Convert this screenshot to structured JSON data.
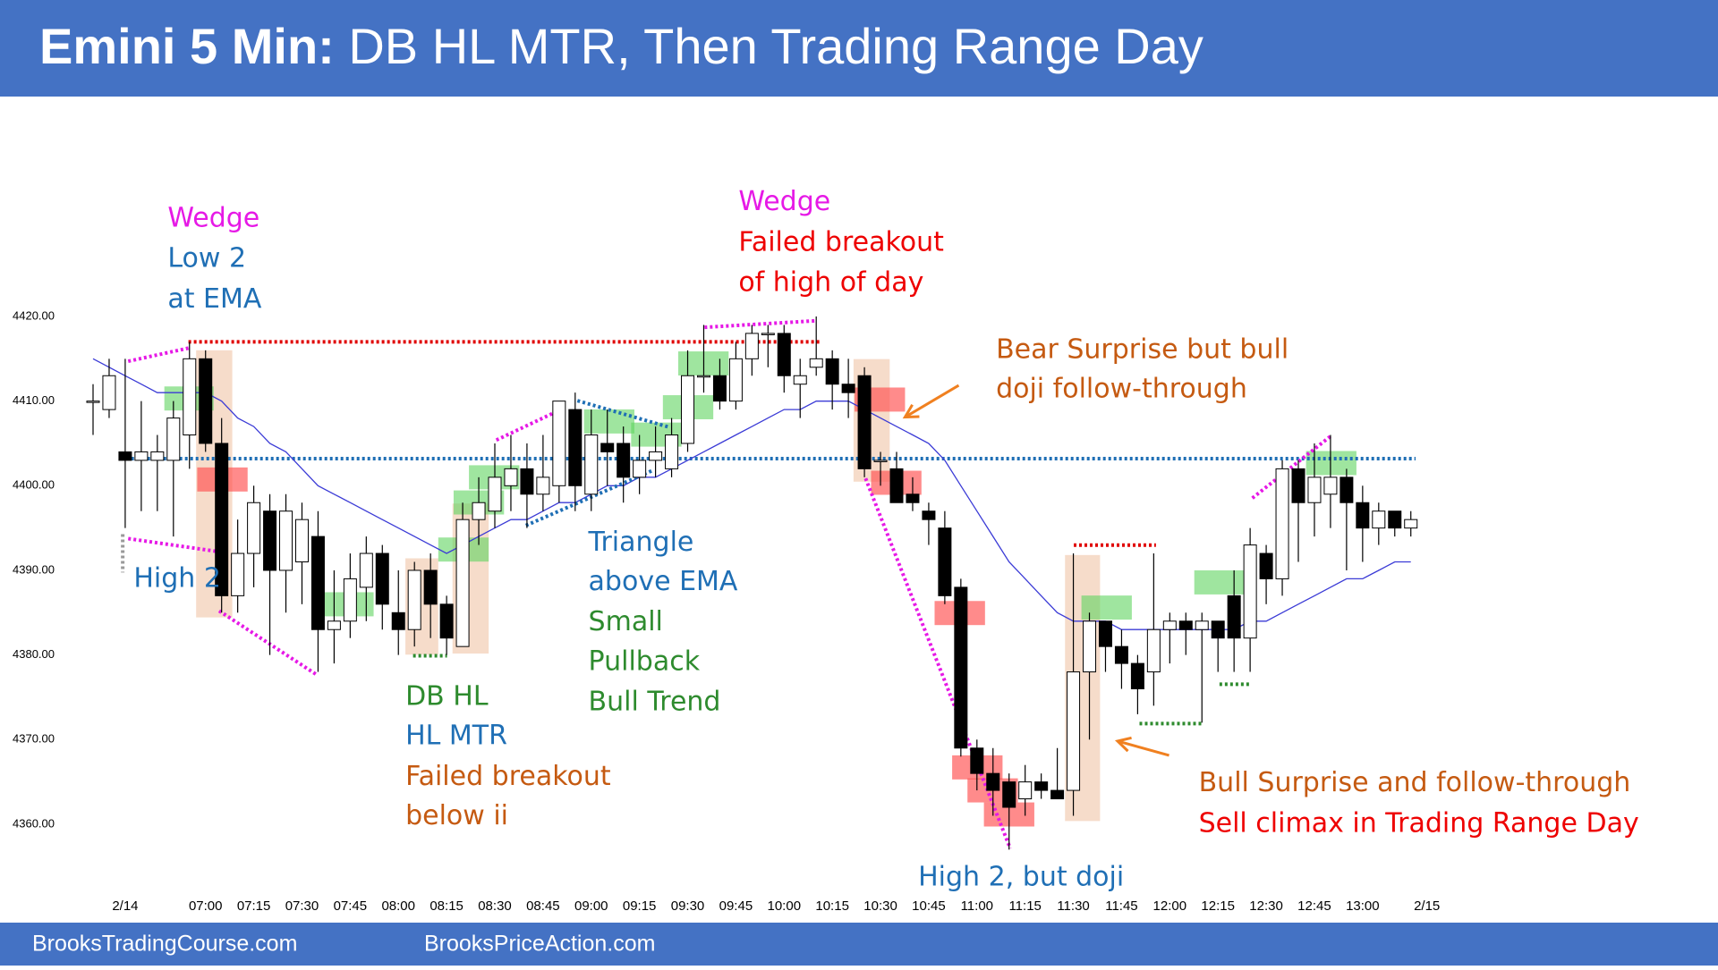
{
  "chart_data": {
    "type": "candlestick",
    "title": "Emini 5 Min:",
    "subtitle": "DB HL MTR, Then Trading Range Day",
    "categories": [
      null,
      null,
      "2/14",
      null,
      null,
      null,
      null,
      "07:00",
      null,
      null,
      "07:15",
      null,
      null,
      "07:30",
      null,
      null,
      "07:45",
      null,
      null,
      "08:00",
      null,
      null,
      "08:15",
      null,
      null,
      "08:30",
      null,
      null,
      "08:45",
      null,
      null,
      "09:00",
      null,
      null,
      "09:15",
      null,
      null,
      "09:30",
      null,
      null,
      "09:45",
      null,
      null,
      "10:00",
      null,
      null,
      "10:15",
      null,
      null,
      "10:30",
      null,
      null,
      "10:45",
      null,
      null,
      "11:00",
      null,
      null,
      "11:15",
      null,
      null,
      "11:30",
      null,
      null,
      "11:45",
      null,
      null,
      "12:00",
      null,
      null,
      "12:15",
      null,
      null,
      "12:30",
      null,
      null,
      "12:45",
      null,
      null,
      "13:00",
      null,
      null,
      null,
      "2/15"
    ],
    "open": [
      4410,
      4409,
      4404,
      4403,
      4403,
      4403,
      4406,
      4415,
      4405,
      4387,
      4392,
      4397,
      4390,
      4391,
      4394,
      4383,
      4384,
      4388,
      4392,
      4385,
      4383,
      4390,
      4386,
      4381,
      4396,
      4397,
      4400,
      4402,
      4399,
      4400,
      4409,
      4399,
      4405,
      4405,
      4401,
      4403,
      4402,
      4405,
      4413,
      4413,
      4410,
      4415,
      4418,
      4418,
      4412,
      4414,
      4415,
      4412,
      4413,
      4403,
      4402,
      4399,
      4397,
      4395,
      4388,
      4369,
      4366,
      4365,
      4363,
      4365,
      4364,
      4364,
      4378,
      4384,
      4381,
      4379,
      4378,
      4383,
      4384,
      4383,
      4384,
      4387,
      4382,
      4392,
      4389,
      4402,
      4398,
      4399,
      4401,
      4398,
      4395,
      4397,
      4395,
      null
    ],
    "high": [
      4412,
      4415,
      4415,
      4410,
      4406,
      4410,
      4417,
      4416,
      4408,
      4396,
      4400,
      4399,
      4399,
      4398,
      4397,
      4390,
      4392,
      4394,
      4393,
      4390,
      4391,
      4392,
      4387,
      4398,
      4401,
      4405,
      4406,
      4405,
      4406,
      4410,
      4411,
      4409,
      4409,
      4407,
      4406,
      4407,
      4408,
      4416,
      4419,
      4415,
      4417,
      4419,
      4419,
      4419,
      4415,
      4420,
      4416,
      4415,
      4414,
      4404,
      4404,
      4401,
      4398,
      4397,
      4389,
      4370,
      4369,
      4366,
      4367,
      4366,
      4369,
      4392,
      4385,
      4384,
      4383,
      4380,
      4392,
      4385,
      4385,
      4385,
      4384,
      4390,
      4395,
      4393,
      4403,
      4403,
      4405,
      4406,
      4402,
      4400,
      4398,
      4397,
      4397,
      null
    ],
    "low": [
      4406,
      4408,
      4395,
      4397,
      4397,
      4394,
      4402,
      4404,
      4385,
      4385,
      4388,
      4380,
      4385,
      4386,
      4378,
      4379,
      4382,
      4384,
      4383,
      4380,
      4381,
      4382,
      4380,
      4381,
      4393,
      4395,
      4397,
      4395,
      4397,
      4398,
      4397,
      4397,
      4400,
      4398,
      4399,
      4401,
      4401,
      4404,
      4411,
      4409,
      4409,
      4413,
      4414,
      4411,
      4408,
      4413,
      4409,
      4408,
      4401,
      4400,
      4398,
      4397,
      4393,
      4386,
      4368,
      4364,
      4361,
      4357,
      4361,
      4363,
      4363,
      4361,
      4370,
      4378,
      4376,
      4373,
      4374,
      4379,
      4380,
      4372,
      4378,
      4378,
      4378,
      4386,
      4387,
      4391,
      4394,
      4395,
      4390,
      4391,
      4393,
      4394,
      4394,
      null
    ],
    "close": [
      4410,
      4413,
      4403,
      4404,
      4404,
      4408,
      4415,
      4405,
      4387,
      4392,
      4398,
      4390,
      4397,
      4396,
      4383,
      4384,
      4389,
      4392,
      4386,
      4383,
      4390,
      4386,
      4382,
      4396,
      4398,
      4401,
      4402,
      4399,
      4401,
      4410,
      4400,
      4406,
      4404,
      4401,
      4403,
      4404,
      4406,
      4413,
      4413,
      4410,
      4415,
      4418,
      4418,
      4413,
      4413,
      4415,
      4412,
      4411,
      4402,
      4403,
      4398,
      4398,
      4396,
      4387,
      4369,
      4366,
      4364,
      4362,
      4365,
      4364,
      4363,
      4378,
      4384,
      4381,
      4379,
      4376,
      4383,
      4384,
      4383,
      4384,
      4382,
      4382,
      4393,
      4389,
      4402,
      4398,
      4401,
      4401,
      4398,
      4395,
      4397,
      4395,
      4396,
      null
    ],
    "up_color": "#ffffff",
    "down_color": "#000000",
    "ema": {
      "color": "#3b3bd6",
      "values": [
        4415,
        4414,
        4413,
        4412,
        4411,
        4411,
        4411,
        4411,
        4410,
        4408,
        4407,
        4405,
        4404,
        4402,
        4400,
        4399,
        4398,
        4397,
        4396,
        4395,
        4394,
        4393,
        4392,
        4393,
        4394,
        4395,
        4396,
        4396,
        4397,
        4398,
        4398,
        4399,
        4400,
        4400,
        4401,
        4401,
        4402,
        4403,
        4404,
        4405,
        4406,
        4407,
        4408,
        4409,
        4409,
        4410,
        4410,
        4410,
        4409,
        4408,
        4407,
        4406,
        4405,
        4403,
        4400,
        4397,
        4394,
        4391,
        4389,
        4387,
        4385,
        4384,
        4384,
        4384,
        4383,
        4383,
        4383,
        4383,
        4383,
        4383,
        4383,
        4383,
        4384,
        4384,
        4385,
        4386,
        4387,
        4388,
        4389,
        4389,
        4390,
        4391,
        4391,
        null
      ]
    },
    "reference_lines": [
      {
        "value": 4403.2,
        "color": "#1f6fb5"
      },
      {
        "value": 4417,
        "color": "#e00000"
      }
    ],
    "ylim": [
      4350,
      4445
    ],
    "yticks": [
      {
        "value": 4360,
        "label": "4360.00"
      },
      {
        "value": 4370,
        "label": "4370.00"
      },
      {
        "value": 4380,
        "label": "4380.00"
      },
      {
        "value": 4390,
        "label": "4390.00"
      },
      {
        "value": 4400,
        "label": "4400.00"
      },
      {
        "value": 4410,
        "label": "4410.00"
      },
      {
        "value": 4420,
        "label": "4420.00"
      }
    ],
    "annotations": [
      {
        "text": "Wedge",
        "color": "#e619e6"
      },
      {
        "text": "Low 2",
        "color": "#1f6fb5"
      },
      {
        "text": "at EMA",
        "color": "#1f6fb5"
      },
      {
        "text": "High 2",
        "color": "#1f6fb5"
      },
      {
        "text": "Wedge",
        "color": "#e619e6"
      },
      {
        "text": "Failed breakout",
        "color": "#ee0000"
      },
      {
        "text": "of high of day",
        "color": "#ee0000"
      },
      {
        "text": "Bear Surprise but bull",
        "color": "#c55a11"
      },
      {
        "text": "doji follow-through",
        "color": "#c55a11"
      },
      {
        "text": "Triangle",
        "color": "#1f6fb5"
      },
      {
        "text": "above EMA",
        "color": "#1f6fb5"
      },
      {
        "text": "Small",
        "color": "#2e8b2e"
      },
      {
        "text": "Pullback",
        "color": "#2e8b2e"
      },
      {
        "text": "Bull Trend",
        "color": "#2e8b2e"
      },
      {
        "text": "DB HL",
        "color": "#2e8b2e"
      },
      {
        "text": "HL MTR",
        "color": "#1f6fb5"
      },
      {
        "text": "Failed breakout",
        "color": "#c55a11"
      },
      {
        "text": "below ii",
        "color": "#c55a11"
      },
      {
        "text": "High 2, but doji",
        "color": "#1f6fb5"
      },
      {
        "text": "Bull Surprise and follow-through",
        "color": "#c55a11"
      },
      {
        "text": "Sell climax in Trading Range Day",
        "color": "#ee0000"
      }
    ]
  },
  "footer": [
    "BrooksTradingCourse.com",
    "BrooksPriceAction.com"
  ]
}
